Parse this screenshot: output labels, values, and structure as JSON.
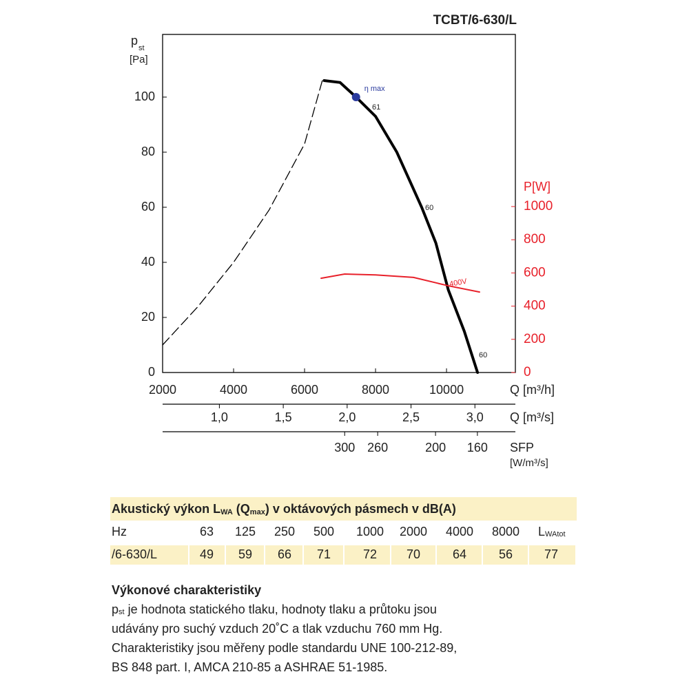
{
  "chart_data": {
    "type": "line",
    "title": "TCBT/6-630/L",
    "ylabel": [
      "p",
      "st",
      "[Pa]"
    ],
    "xlabel": "Q [m³/h]",
    "x2label": "Q [m³/s]",
    "y2label": "P[W]",
    "sfplabel": [
      "SFP",
      "[W/m³/s]"
    ],
    "xlim": [
      2000,
      11940
    ],
    "xticks": [
      2000,
      4000,
      6000,
      8000,
      10000
    ],
    "ylim": [
      0,
      122.75
    ],
    "yticks": [
      0,
      20,
      40,
      60,
      80,
      100
    ],
    "y2lim": [
      0,
      2037
    ],
    "y2ticks": [
      0,
      200,
      400,
      600,
      800,
      1000
    ],
    "x2lim": [
      0.5556,
      3.3167
    ],
    "x2ticks": [
      {
        "value": 1.0,
        "label": "1,0"
      },
      {
        "value": 1.5,
        "label": "1,5"
      },
      {
        "value": 2.0,
        "label": "2,0"
      },
      {
        "value": 2.5,
        "label": "2,5"
      },
      {
        "value": 3.0,
        "label": "3,0"
      }
    ],
    "sfp_ticks": [
      {
        "value": 300,
        "q": 7130
      },
      {
        "value": 260,
        "q": 8060
      },
      {
        "value": 200,
        "q": 9690
      },
      {
        "value": 160,
        "q": 10870
      }
    ],
    "series": [
      {
        "color": "#000000",
        "style": "solid",
        "x": [
          6550,
          7000,
          7450,
          8000,
          8600,
          9300,
          9700,
          10050,
          10500,
          10874
        ],
        "values": [
          106,
          105.3,
          100,
          93,
          80,
          60,
          47,
          30,
          15,
          0
        ]
      },
      {
        "color": "#000000",
        "style": "dashed",
        "x": [
          2000,
          3000,
          4000,
          5000,
          6000,
          6500
        ],
        "values": [
          10,
          24,
          40,
          59,
          83,
          106
        ]
      },
      {
        "name": "400V",
        "color": "#e8202a",
        "style": "solid",
        "axis": "y2",
        "x": [
          6466,
          7130,
          8000,
          9070,
          10040,
          10930
        ],
        "values": [
          568,
          593,
          588,
          573,
          523,
          485
        ]
      }
    ],
    "eta_max": {
      "label": "η max",
      "x": 7450,
      "y": 100,
      "color": "#2b3b9e"
    },
    "annotations": [
      "61",
      "60",
      "60"
    ]
  },
  "table": {
    "title": [
      "Akustický výkon L",
      "WA",
      " (Q",
      "max",
      ") v oktávových pásmech v dB(A)"
    ],
    "header": [
      "Hz",
      "63",
      "125",
      "250",
      "500",
      "1000",
      "2000",
      "4000",
      "8000"
    ],
    "header_last": [
      "L",
      "WAtot"
    ],
    "row": [
      "/6-630/L",
      "49",
      "59",
      "66",
      "71",
      "72",
      "70",
      "64",
      "56",
      "77"
    ]
  },
  "notes": {
    "heading": "Výkonové charakteristiky",
    "first": [
      "p",
      "st",
      " je hodnota statického tlaku, hodnoty tlaku a průtoku jsou"
    ],
    "lines": [
      "udávány pro suchý vzduch 20˚C a tlak vzduchu 760 mm Hg.",
      "Charakteristiky jsou měřeny podle standardu UNE 100-212-89,",
      "BS 848 part. I, AMCA 210-85 a ASHRAE 51-1985."
    ]
  }
}
